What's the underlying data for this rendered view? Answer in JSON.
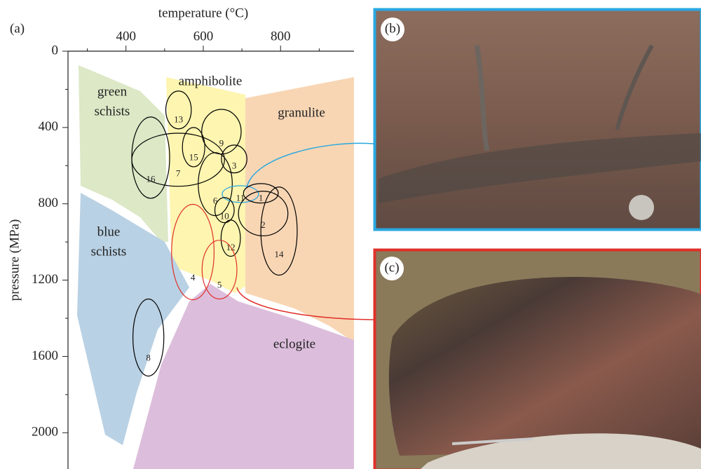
{
  "chart_data": {
    "type": "ellipse",
    "panel_labels": {
      "a": "(a)",
      "b": "(b)",
      "c": "(c)"
    },
    "x_label": "temperature (°C)",
    "y_label": "pressure (MPa)",
    "xlim": [
      250,
      990
    ],
    "ylim": [
      0,
      2190
    ],
    "xticks": [
      400,
      600,
      800
    ],
    "xminorticks": [
      300,
      500,
      700,
      900
    ],
    "yticks": [
      0,
      400,
      800,
      1200,
      1600,
      2000
    ],
    "yminorticks": [
      200,
      600,
      1000,
      1400,
      1800
    ],
    "facies": {
      "green_schists": [
        "green",
        "schists"
      ],
      "amphibolite": "amphibolite",
      "granulite": "granulite",
      "blue_schists": [
        "blue",
        "schists"
      ],
      "eclogite": "eclogite"
    },
    "ellipses": [
      {
        "label": "13",
        "t": 536,
        "p": 308,
        "dt": 33,
        "dp": 99,
        "color": "#000000"
      },
      {
        "label": "9",
        "t": 647,
        "p": 422,
        "dt": 51,
        "dp": 117,
        "color": "#000000"
      },
      {
        "label": "15",
        "t": 575,
        "p": 503,
        "dt": 29,
        "dp": 103,
        "color": "#000000"
      },
      {
        "label": "16",
        "t": 464,
        "p": 558,
        "dt": 49,
        "dp": 213,
        "color": "#000000"
      },
      {
        "label": "7",
        "t": 535,
        "p": 569,
        "dt": 120,
        "dp": 139,
        "color": "#000000"
      },
      {
        "label": "3",
        "t": 680,
        "p": 565,
        "dt": 33,
        "dp": 73,
        "color": "#000000"
      },
      {
        "label": "6",
        "t": 631,
        "p": 697,
        "dt": 44,
        "dp": 165,
        "color": "#000000"
      },
      {
        "label": "11",
        "t": 696,
        "p": 749,
        "dt": 47,
        "dp": 44,
        "color": "#29a8e0"
      },
      {
        "label": "1",
        "t": 749,
        "p": 745,
        "dt": 45,
        "dp": 51,
        "color": "#000000"
      },
      {
        "label": "10",
        "t": 655,
        "p": 833,
        "dt": 25,
        "dp": 66,
        "color": "#000000"
      },
      {
        "label": "2",
        "t": 755,
        "p": 851,
        "dt": 64,
        "dp": 117,
        "color": "#000000"
      },
      {
        "label": "12",
        "t": 671,
        "p": 980,
        "dt": 25,
        "dp": 95,
        "color": "#000000"
      },
      {
        "label": "14",
        "t": 796,
        "p": 943,
        "dt": 47,
        "dp": 231,
        "color": "#000000"
      },
      {
        "label": "4",
        "t": 573,
        "p": 1053,
        "dt": 55,
        "dp": 250,
        "color": "#e0302a"
      },
      {
        "label": "5",
        "t": 642,
        "p": 1145,
        "dt": 45,
        "dp": 154,
        "color": "#e0302a"
      },
      {
        "label": "8",
        "t": 458,
        "p": 1501,
        "dt": 40,
        "dp": 202,
        "color": "#000000"
      }
    ]
  }
}
